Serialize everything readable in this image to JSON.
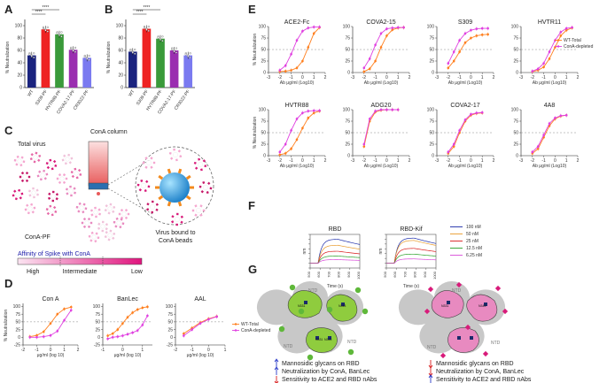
{
  "panel_labels": [
    "A",
    "B",
    "C",
    "D",
    "E",
    "F",
    "G"
  ],
  "panel_a": {
    "ylabel": "% Neutralization",
    "categories": [
      "WT",
      "S309-PF",
      "HVTR88-PF",
      "COVA2-17-PF",
      "CR3022-PF"
    ],
    "values": [
      52,
      94,
      86,
      61,
      48
    ],
    "colors": [
      "#1a237e",
      "#ee2222",
      "#3a9a3a",
      "#9a2eb0",
      "#7a7af0"
    ],
    "sig": "****",
    "yticks": [
      "0",
      "20",
      "40",
      "60",
      "80",
      "100"
    ],
    "ylim": [
      0,
      110
    ]
  },
  "panel_b": {
    "ylabel": "% Neutralization",
    "categories": [
      "WT",
      "S309-PF",
      "HVTR88-PF",
      "COVA2-17-PF",
      "CR3022-PF"
    ],
    "values": [
      58,
      95,
      79,
      60,
      52
    ],
    "colors": [
      "#1a237e",
      "#ee2222",
      "#3a9a3a",
      "#9a2eb0",
      "#7a7af0"
    ],
    "sig": "****",
    "yticks": [
      "0",
      "20",
      "40",
      "60",
      "80",
      "100"
    ],
    "ylim": [
      0,
      110
    ]
  },
  "panel_c": {
    "total_virus": "Total virus",
    "column": "ConA column",
    "conapf": "ConA-PF",
    "bound1": "Virus bound to",
    "bound2": "ConA beads",
    "affinity_title": "Affinity of Spike with ConA",
    "levels": [
      "High",
      "Intermediate",
      "Low"
    ]
  },
  "chart_data": [
    {
      "type": "line",
      "panel": "D",
      "title": "Con A",
      "xlabel": "μg/ml (log 10)",
      "ylabel": "% Neutralization",
      "xlim": [
        -2,
        2
      ],
      "ylim": [
        -25,
        110
      ],
      "x": [
        -1.5,
        -1,
        -0.5,
        0,
        0.5,
        1,
        1.5
      ],
      "series": [
        {
          "name": "WT-Total",
          "values": [
            2,
            6,
            18,
            45,
            75,
            92,
            98
          ]
        },
        {
          "name": "ConA-depleted",
          "values": [
            0,
            0,
            2,
            6,
            20,
            55,
            88
          ]
        }
      ],
      "reference_line": 50
    },
    {
      "type": "line",
      "panel": "D",
      "title": "BanLec",
      "xlabel": "μg/ml (log 10)",
      "ylabel": "",
      "xlim": [
        -1,
        1.5
      ],
      "ylim": [
        -25,
        110
      ],
      "x": [
        -0.75,
        -0.5,
        -0.25,
        0,
        0.25,
        0.5,
        0.75,
        1,
        1.25
      ],
      "series": [
        {
          "name": "WT-Total",
          "values": [
            5,
            12,
            25,
            45,
            65,
            80,
            90,
            96,
            99
          ]
        },
        {
          "name": "ConA-depleted",
          "values": [
            -5,
            0,
            2,
            5,
            10,
            15,
            22,
            40,
            70
          ]
        }
      ],
      "reference_line": 50
    },
    {
      "type": "line",
      "panel": "D",
      "title": "AAL",
      "xlabel": "μg/ml (log 10)",
      "ylabel": "",
      "xlim": [
        -2,
        1
      ],
      "ylim": [
        -25,
        110
      ],
      "x": [
        -1.5,
        -1,
        -0.5,
        0,
        0.5
      ],
      "series": [
        {
          "name": "WT-Total",
          "values": [
            12,
            30,
            48,
            60,
            68
          ]
        },
        {
          "name": "ConA-depleted",
          "values": [
            5,
            25,
            45,
            58,
            67
          ]
        }
      ],
      "reference_line": 50
    },
    {
      "type": "line",
      "panel": "E",
      "title": "ACE2-Fc",
      "xlabel": "Ab μg/ml (Log10)",
      "ylabel": "% Neutralization",
      "xlim": [
        -3,
        2
      ],
      "ylim": [
        0,
        100
      ],
      "x": [
        -2,
        -1.5,
        -1,
        -0.5,
        0,
        0.5,
        1,
        1.5
      ],
      "series": [
        {
          "name": "WT-Total",
          "values": [
            2,
            3,
            5,
            10,
            25,
            55,
            85,
            98
          ]
        },
        {
          "name": "ConA-depleted",
          "values": [
            5,
            15,
            40,
            70,
            90,
            97,
            99,
            99
          ]
        }
      ],
      "reference_line": 50
    },
    {
      "type": "line",
      "panel": "E",
      "title": "COVA2-15",
      "xlabel": "Ab μg/ml (Log10)",
      "ylabel": "",
      "xlim": [
        -3,
        2
      ],
      "ylim": [
        0,
        100
      ],
      "x": [
        -2,
        -1.5,
        -1,
        -0.5,
        0,
        0.5,
        1,
        1.5
      ],
      "series": [
        {
          "name": "WT-Total",
          "values": [
            2,
            8,
            25,
            55,
            80,
            93,
            97,
            98
          ]
        },
        {
          "name": "ConA-depleted",
          "values": [
            10,
            30,
            60,
            85,
            95,
            97,
            98,
            98
          ]
        }
      ],
      "reference_line": 50
    },
    {
      "type": "line",
      "panel": "E",
      "title": "S309",
      "xlabel": "Ab μg/ml (Log10)",
      "ylabel": "",
      "xlim": [
        -3,
        2
      ],
      "ylim": [
        0,
        100
      ],
      "x": [
        -2,
        -1.5,
        -1,
        -0.5,
        0,
        0.5,
        1,
        1.5
      ],
      "series": [
        {
          "name": "WT-Total",
          "values": [
            10,
            25,
            45,
            65,
            75,
            80,
            82,
            83
          ]
        },
        {
          "name": "ConA-depleted",
          "values": [
            20,
            45,
            70,
            85,
            92,
            95,
            96,
            96
          ]
        }
      ],
      "reference_line": 50
    },
    {
      "type": "line",
      "panel": "E",
      "title": "HVTR11",
      "xlabel": "Ab μg/ml (Log10)",
      "ylabel": "",
      "xlim": [
        -3,
        2
      ],
      "ylim": [
        0,
        100
      ],
      "x": [
        -2,
        -1.5,
        -1,
        -0.5,
        0,
        0.5,
        1,
        1.5
      ],
      "series": [
        {
          "name": "WT-Total",
          "values": [
            2,
            5,
            12,
            30,
            55,
            80,
            92,
            97
          ]
        },
        {
          "name": "ConA-depleted",
          "values": [
            3,
            8,
            20,
            45,
            70,
            88,
            96,
            98
          ]
        }
      ],
      "reference_line": 50
    },
    {
      "type": "line",
      "panel": "E",
      "title": "HVTR88",
      "xlabel": "Ab μg/ml (Log10)",
      "ylabel": "% Neutralization",
      "xlim": [
        -3,
        2
      ],
      "ylim": [
        0,
        100
      ],
      "x": [
        -2,
        -1.5,
        -1,
        -0.5,
        0,
        0.5,
        1,
        1.5
      ],
      "series": [
        {
          "name": "WT-Total",
          "values": [
            2,
            5,
            15,
            35,
            60,
            82,
            93,
            97
          ]
        },
        {
          "name": "ConA-depleted",
          "values": [
            8,
            25,
            55,
            80,
            93,
            97,
            98,
            98
          ]
        }
      ],
      "reference_line": 50
    },
    {
      "type": "line",
      "panel": "E",
      "title": "ADG20",
      "xlabel": "Ab μg/ml (Log10)",
      "ylabel": "",
      "xlim": [
        -3,
        2
      ],
      "ylim": [
        0,
        100
      ],
      "x": [
        -2,
        -1.5,
        -1,
        -0.5,
        0,
        0.5,
        1
      ],
      "series": [
        {
          "name": "WT-Total",
          "values": [
            20,
            75,
            95,
            99,
            100,
            100,
            100
          ]
        },
        {
          "name": "ConA-depleted",
          "values": [
            25,
            80,
            97,
            100,
            100,
            100,
            100
          ]
        }
      ],
      "reference_line": 50
    },
    {
      "type": "line",
      "panel": "E",
      "title": "COVA2-17",
      "xlabel": "Ab μg/ml (Log10)",
      "ylabel": "",
      "xlim": [
        -3,
        2
      ],
      "ylim": [
        0,
        100
      ],
      "x": [
        -2,
        -1.5,
        -1,
        -0.5,
        0,
        0.5,
        1
      ],
      "series": [
        {
          "name": "WT-Total",
          "values": [
            5,
            20,
            50,
            75,
            88,
            92,
            93
          ]
        },
        {
          "name": "ConA-depleted",
          "values": [
            8,
            25,
            55,
            78,
            90,
            93,
            94
          ]
        }
      ],
      "reference_line": 50
    },
    {
      "type": "line",
      "panel": "E",
      "title": "4A8",
      "xlabel": "Ab μg/ml (Log10)",
      "ylabel": "",
      "xlim": [
        -3,
        2
      ],
      "ylim": [
        0,
        100
      ],
      "x": [
        -2,
        -1.5,
        -1,
        -0.5,
        0,
        0.5,
        1
      ],
      "series": [
        {
          "name": "WT-Total",
          "values": [
            5,
            15,
            40,
            65,
            80,
            86,
            88
          ]
        },
        {
          "name": "ConA-depleted",
          "values": [
            8,
            20,
            45,
            70,
            82,
            87,
            88
          ]
        }
      ],
      "reference_line": 50
    },
    {
      "type": "line",
      "panel": "F",
      "title": "RBD",
      "xlabel": "Time (s)",
      "ylabel": "nm",
      "xlim": [
        500,
        1000
      ],
      "ylim": [
        -0.2,
        1.2
      ],
      "series": [
        {
          "name": "100 nM",
          "plateau": 1.0
        },
        {
          "name": "50 nM",
          "plateau": 0.75
        },
        {
          "name": "25 nM",
          "plateau": 0.5
        },
        {
          "name": "12.5 nM",
          "plateau": 0.3
        },
        {
          "name": "6.25 nM",
          "plateau": 0.15
        }
      ]
    },
    {
      "type": "line",
      "panel": "F",
      "title": "RBD-Kif",
      "xlabel": "Time (s)",
      "ylabel": "nm",
      "xlim": [
        500,
        1000
      ],
      "ylim": [
        -0.2,
        1.2
      ],
      "series": [
        {
          "name": "100 nM",
          "plateau": 1.05
        },
        {
          "name": "50 nM",
          "plateau": 0.95
        },
        {
          "name": "25 nM",
          "plateau": 0.62
        },
        {
          "name": "12.5 nM",
          "plateau": 0.38
        },
        {
          "name": "6.25 nM",
          "plateau": 0.18
        }
      ]
    }
  ],
  "panel_d_legend": [
    "WT-Total",
    "ConA-depleted"
  ],
  "panel_e_legend": [
    "WT-Total",
    "ConA-depleted"
  ],
  "panel_d_yticks": [
    "-25",
    "0",
    "25",
    "50",
    "75",
    "100"
  ],
  "panel_d_xticks": [
    [
      "-2",
      "-1",
      "0",
      "1",
      "2"
    ],
    [
      "-1",
      "0",
      "1"
    ],
    [
      "-2",
      "-1",
      "0",
      "1"
    ]
  ],
  "panel_e_yticks": [
    "0",
    "25",
    "50",
    "75",
    "100"
  ],
  "panel_e_xticks": [
    "-3",
    "-2",
    "-1",
    "0",
    "1",
    "2"
  ],
  "panel_f_xticks": [
    "500",
    "600",
    "700",
    "800",
    "900",
    "1000"
  ],
  "panel_f_yticks": [
    "1.2",
    "1.0",
    "0.8",
    "0.6",
    "0.4",
    "0.2",
    "0.0",
    "-0.2"
  ],
  "panel_f_legend": [
    {
      "label": "100 nM",
      "color": "#1a2aa8"
    },
    {
      "label": "50 nM",
      "color": "#e89a2a"
    },
    {
      "label": "25 nM",
      "color": "#d81b1b"
    },
    {
      "label": "12.5 nM",
      "color": "#2aa02a"
    },
    {
      "label": "6.25 nM",
      "color": "#d84ad8"
    }
  ],
  "colors": {
    "wt": "#ff7f1e",
    "cona": "#e040e0",
    "ref": "#888888"
  },
  "panel_g": {
    "ntd": "NTD",
    "glycans": [
      "N331",
      "N343",
      "N331",
      "N343",
      "N331",
      "N343"
    ],
    "left_lines": [
      "Mannosidic glycans on RBD",
      "Neutralization by ConA, BanLec",
      "Sensitivity to ACE2 and RBD nAbs"
    ],
    "right_lines": [
      "Mannosidic glycans on RBD",
      "Neutralization by ConA, BanLec",
      "Sensitivity to ACE2 and RBD nAbs"
    ],
    "left_arrows": [
      "up",
      "up",
      "down"
    ],
    "right_arrows": [
      "down",
      "down",
      "up"
    ]
  }
}
